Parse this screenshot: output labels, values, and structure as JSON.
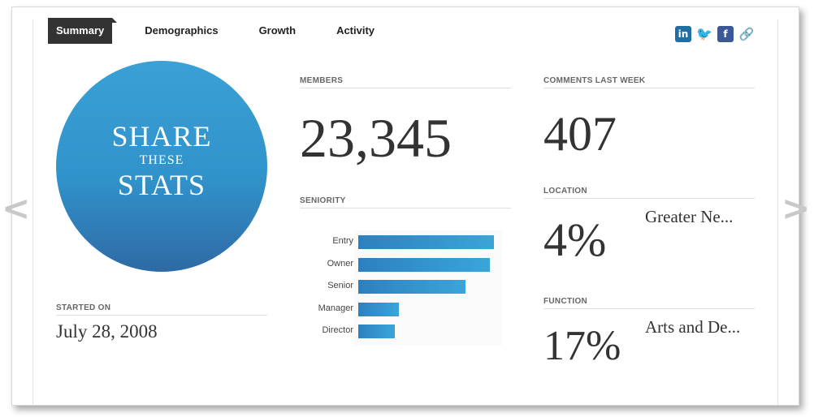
{
  "tabs": [
    {
      "label": "Summary"
    },
    {
      "label": "Demographics"
    },
    {
      "label": "Growth"
    },
    {
      "label": "Activity"
    }
  ],
  "social_icons": [
    {
      "icon": "linkedin-icon",
      "glyph": "in"
    },
    {
      "icon": "twitter-icon",
      "glyph": "🐦"
    },
    {
      "icon": "facebook-icon",
      "glyph": "f"
    },
    {
      "icon": "link-icon",
      "glyph": "🔗"
    }
  ],
  "nav": {
    "prev": "<",
    "next": ">"
  },
  "share": {
    "line1": "SHARE",
    "line2": "THESE",
    "line3": "STATS"
  },
  "started": {
    "label": "STARTED ON",
    "value": "July 28, 2008"
  },
  "members": {
    "label": "MEMBERS",
    "value": "23,345"
  },
  "comments": {
    "label": "COMMENTS LAST WEEK",
    "value": "407"
  },
  "location": {
    "label": "LOCATION",
    "value": "4%",
    "name": "Greater Ne..."
  },
  "function": {
    "label": "FUNCTION",
    "value": "17%",
    "name": "Arts and De..."
  },
  "seniority": {
    "label": "SENIORITY"
  },
  "colors": {
    "accent": "#3193cb",
    "tab_active_bg": "#333333"
  },
  "chart_data": {
    "type": "bar",
    "orientation": "horizontal",
    "categories": [
      "Entry",
      "Owner",
      "Senior",
      "Manager",
      "Director"
    ],
    "values": [
      100,
      97,
      79,
      30,
      27
    ]
  }
}
